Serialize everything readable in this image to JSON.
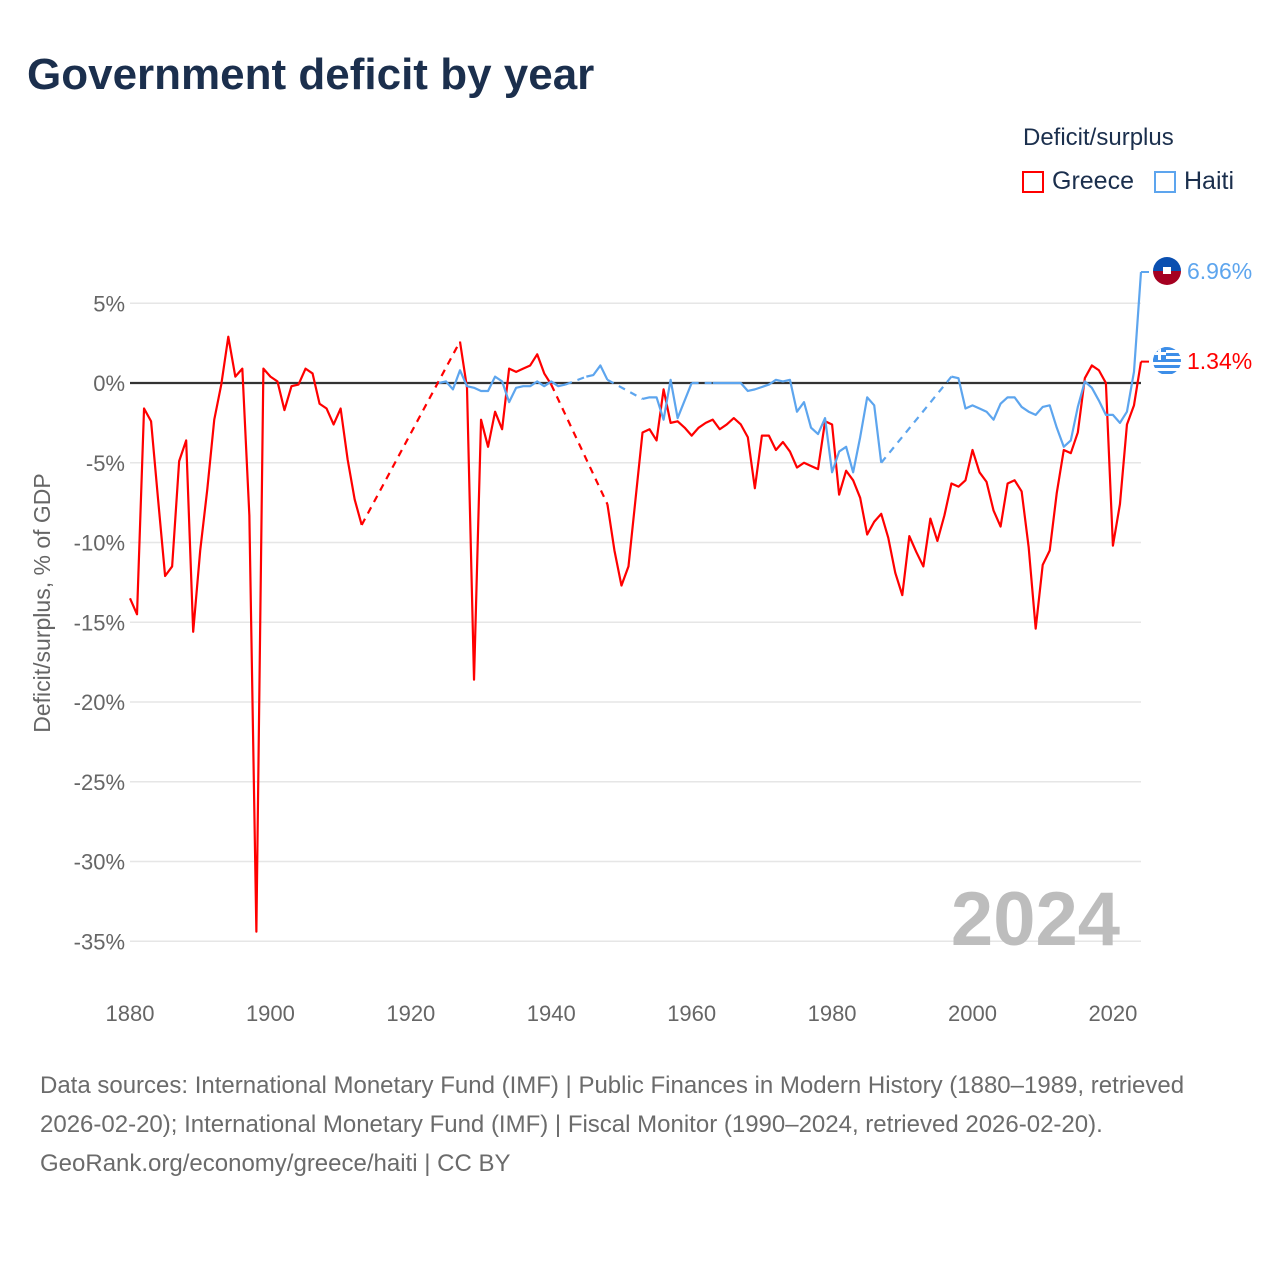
{
  "title": "Government deficit by year",
  "legend": {
    "title": "Deficit/surplus",
    "items": [
      {
        "label": "Greece",
        "color": "#ff0000"
      },
      {
        "label": "Haiti",
        "color": "#5da5ee"
      }
    ]
  },
  "year_watermark": "2024",
  "end_labels": {
    "haiti": "6.96%",
    "greece": "1.34%"
  },
  "footer": {
    "sources": "Data sources: International Monetary Fund (IMF) | Public Finances in Modern History (1880–1989, retrieved 2026-02-20); International Monetary Fund (IMF) | Fiscal Monitor (1990–2024, retrieved 2026-02-20).",
    "credit": "GeoRank.org/economy/greece/haiti | CC BY"
  },
  "chart_data": {
    "type": "line",
    "title": "Government deficit by year",
    "xlabel": "",
    "ylabel": "Deficit/surplus, % of GDP",
    "xlim": [
      1880,
      2024
    ],
    "ylim": [
      -37,
      8
    ],
    "x_ticks": [
      1880,
      1900,
      1920,
      1940,
      1960,
      1980,
      2000,
      2020
    ],
    "y_ticks": [
      5,
      0,
      -5,
      -10,
      -15,
      -20,
      -25,
      -30,
      -35
    ],
    "y_tick_labels": [
      "5%",
      "0%",
      "-5%",
      "-10%",
      "-15%",
      "-20%",
      "-25%",
      "-30%",
      "-35%"
    ],
    "x_tick_labels": [
      "1880",
      "1900",
      "1920",
      "1940",
      "1960",
      "1980",
      "2000",
      "2020"
    ],
    "grid": true,
    "legend_position": "top-right",
    "series": [
      {
        "name": "Greece",
        "color": "#ff0000",
        "points": [
          [
            1880,
            -13.5
          ],
          [
            1881,
            -14.5
          ],
          [
            1882,
            -1.6
          ],
          [
            1883,
            -2.4
          ],
          [
            1884,
            -7.3
          ],
          [
            1885,
            -12.1
          ],
          [
            1886,
            -11.5
          ],
          [
            1887,
            -4.9
          ],
          [
            1888,
            -3.6
          ],
          [
            1889,
            -15.6
          ],
          [
            1890,
            -10.5
          ],
          [
            1891,
            -6.7
          ],
          [
            1892,
            -2.3
          ],
          [
            1893,
            -0.1
          ],
          [
            1894,
            2.9
          ],
          [
            1895,
            0.4
          ],
          [
            1896,
            0.9
          ],
          [
            1897,
            -8.3
          ],
          [
            1898,
            -34.4
          ],
          [
            1899,
            0.9
          ],
          [
            1900,
            0.4
          ],
          [
            1901,
            0.1
          ],
          [
            1902,
            -1.7
          ],
          [
            1903,
            -0.2
          ],
          [
            1904,
            -0.1
          ],
          [
            1905,
            0.9
          ],
          [
            1906,
            0.6
          ],
          [
            1907,
            -1.3
          ],
          [
            1908,
            -1.6
          ],
          [
            1909,
            -2.6
          ],
          [
            1910,
            -1.6
          ],
          [
            1911,
            -4.8
          ],
          [
            1912,
            -7.3
          ],
          [
            1913,
            -8.9
          ],
          [
            1927,
            2.6
          ],
          [
            1928,
            -0.3
          ],
          [
            1929,
            -18.6
          ],
          [
            1930,
            -2.3
          ],
          [
            1931,
            -4.0
          ],
          [
            1932,
            -1.8
          ],
          [
            1933,
            -2.9
          ],
          [
            1934,
            0.9
          ],
          [
            1935,
            0.7
          ],
          [
            1936,
            0.9
          ],
          [
            1937,
            1.1
          ],
          [
            1938,
            1.8
          ],
          [
            1939,
            0.6
          ],
          [
            1940,
            -0.1
          ],
          [
            1948,
            -7.6
          ],
          [
            1949,
            -10.5
          ],
          [
            1950,
            -12.7
          ],
          [
            1951,
            -11.5
          ],
          [
            1952,
            -7.3
          ],
          [
            1953,
            -3.1
          ],
          [
            1954,
            -2.9
          ],
          [
            1955,
            -3.6
          ],
          [
            1956,
            -0.4
          ],
          [
            1957,
            -2.5
          ],
          [
            1958,
            -2.4
          ],
          [
            1959,
            -2.8
          ],
          [
            1960,
            -3.3
          ],
          [
            1961,
            -2.8
          ],
          [
            1962,
            -2.5
          ],
          [
            1963,
            -2.3
          ],
          [
            1964,
            -2.9
          ],
          [
            1965,
            -2.6
          ],
          [
            1966,
            -2.2
          ],
          [
            1967,
            -2.6
          ],
          [
            1968,
            -3.4
          ],
          [
            1969,
            -6.6
          ],
          [
            1970,
            -3.3
          ],
          [
            1971,
            -3.3
          ],
          [
            1972,
            -4.2
          ],
          [
            1973,
            -3.7
          ],
          [
            1974,
            -4.3
          ],
          [
            1975,
            -5.3
          ],
          [
            1976,
            -5.0
          ],
          [
            1977,
            -5.2
          ],
          [
            1978,
            -5.4
          ],
          [
            1979,
            -2.4
          ],
          [
            1980,
            -2.6
          ],
          [
            1981,
            -7.0
          ],
          [
            1982,
            -5.5
          ],
          [
            1983,
            -6.1
          ],
          [
            1984,
            -7.2
          ],
          [
            1985,
            -9.5
          ],
          [
            1986,
            -8.7
          ],
          [
            1987,
            -8.2
          ],
          [
            1988,
            -9.7
          ],
          [
            1989,
            -11.9
          ],
          [
            1990,
            -13.3
          ],
          [
            1991,
            -9.6
          ],
          [
            1992,
            -10.6
          ],
          [
            1993,
            -11.5
          ],
          [
            1994,
            -8.5
          ],
          [
            1995,
            -9.9
          ],
          [
            1996,
            -8.3
          ],
          [
            1997,
            -6.3
          ],
          [
            1998,
            -6.5
          ],
          [
            1999,
            -6.1
          ],
          [
            2000,
            -4.2
          ],
          [
            2001,
            -5.6
          ],
          [
            2002,
            -6.2
          ],
          [
            2003,
            -8.0
          ],
          [
            2004,
            -9.0
          ],
          [
            2005,
            -6.3
          ],
          [
            2006,
            -6.1
          ],
          [
            2007,
            -6.8
          ],
          [
            2008,
            -10.3
          ],
          [
            2009,
            -15.4
          ],
          [
            2010,
            -11.4
          ],
          [
            2011,
            -10.5
          ],
          [
            2012,
            -6.9
          ],
          [
            2013,
            -4.2
          ],
          [
            2014,
            -4.4
          ],
          [
            2015,
            -3.1
          ],
          [
            2016,
            0.3
          ],
          [
            2017,
            1.1
          ],
          [
            2018,
            0.8
          ],
          [
            2019,
            0.0
          ],
          [
            2020,
            -10.2
          ],
          [
            2021,
            -7.6
          ],
          [
            2022,
            -2.6
          ],
          [
            2023,
            -1.4
          ],
          [
            2024,
            1.34
          ]
        ]
      },
      {
        "name": "Haiti",
        "color": "#5da5ee",
        "points": [
          [
            1924,
            0.0
          ],
          [
            1925,
            0.1
          ],
          [
            1926,
            -0.4
          ],
          [
            1927,
            0.8
          ],
          [
            1928,
            -0.2
          ],
          [
            1929,
            -0.3
          ],
          [
            1930,
            -0.5
          ],
          [
            1931,
            -0.5
          ],
          [
            1932,
            0.4
          ],
          [
            1933,
            0.1
          ],
          [
            1934,
            -1.2
          ],
          [
            1935,
            -0.3
          ],
          [
            1936,
            -0.2
          ],
          [
            1937,
            -0.2
          ],
          [
            1938,
            0.1
          ],
          [
            1939,
            -0.2
          ],
          [
            1940,
            0.1
          ],
          [
            1941,
            -0.2
          ],
          [
            1942,
            -0.1
          ],
          [
            1945,
            0.4
          ],
          [
            1946,
            0.5
          ],
          [
            1947,
            1.1
          ],
          [
            1948,
            0.2
          ],
          [
            1953,
            -1.0
          ],
          [
            1954,
            -0.9
          ],
          [
            1955,
            -0.9
          ],
          [
            1956,
            -2.3
          ],
          [
            1957,
            0.2
          ],
          [
            1958,
            -2.2
          ],
          [
            1960,
            0.0
          ],
          [
            1963,
            0.0
          ],
          [
            1965,
            0.0
          ],
          [
            1967,
            0.0
          ],
          [
            1968,
            -0.5
          ],
          [
            1969,
            -0.4
          ],
          [
            1971,
            -0.1
          ],
          [
            1972,
            0.2
          ],
          [
            1973,
            0.1
          ],
          [
            1974,
            0.2
          ],
          [
            1975,
            -1.8
          ],
          [
            1976,
            -1.2
          ],
          [
            1977,
            -2.8
          ],
          [
            1978,
            -3.2
          ],
          [
            1979,
            -2.2
          ],
          [
            1980,
            -5.6
          ],
          [
            1981,
            -4.3
          ],
          [
            1982,
            -4.0
          ],
          [
            1983,
            -5.6
          ],
          [
            1984,
            -3.4
          ],
          [
            1985,
            -0.9
          ],
          [
            1986,
            -1.4
          ],
          [
            1987,
            -5.0
          ],
          [
            1997,
            0.4
          ],
          [
            1998,
            0.3
          ],
          [
            1999,
            -1.6
          ],
          [
            2000,
            -1.4
          ],
          [
            2001,
            -1.6
          ],
          [
            2002,
            -1.8
          ],
          [
            2003,
            -2.3
          ],
          [
            2004,
            -1.3
          ],
          [
            2005,
            -0.9
          ],
          [
            2006,
            -0.9
          ],
          [
            2007,
            -1.5
          ],
          [
            2008,
            -1.8
          ],
          [
            2009,
            -2.0
          ],
          [
            2010,
            -1.5
          ],
          [
            2011,
            -1.4
          ],
          [
            2012,
            -2.8
          ],
          [
            2013,
            -4.0
          ],
          [
            2014,
            -3.6
          ],
          [
            2015,
            -1.5
          ],
          [
            2016,
            0.1
          ],
          [
            2017,
            -0.3
          ],
          [
            2018,
            -1.1
          ],
          [
            2019,
            -2.0
          ],
          [
            2020,
            -2.0
          ],
          [
            2021,
            -2.5
          ],
          [
            2022,
            -1.8
          ],
          [
            2023,
            0.7
          ],
          [
            2024,
            6.96
          ]
        ]
      }
    ]
  }
}
